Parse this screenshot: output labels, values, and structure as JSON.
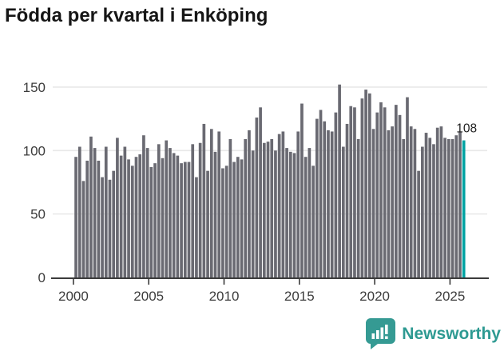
{
  "title": "Födda per kvartal i Enköping",
  "chart_data": {
    "type": "bar",
    "title": "Födda per kvartal i Enköping",
    "period": "quarterly",
    "start_year": 2000,
    "values": [
      95,
      103,
      76,
      92,
      111,
      102,
      92,
      79,
      103,
      77,
      84,
      110,
      96,
      103,
      93,
      88,
      95,
      97,
      112,
      102,
      87,
      90,
      105,
      94,
      108,
      102,
      98,
      96,
      90,
      91,
      91,
      105,
      79,
      106,
      121,
      84,
      117,
      99,
      115,
      86,
      88,
      109,
      91,
      95,
      93,
      109,
      116,
      100,
      126,
      134,
      106,
      107,
      109,
      100,
      113,
      115,
      102,
      99,
      98,
      115,
      137,
      95,
      102,
      88,
      125,
      132,
      123,
      116,
      115,
      130,
      152,
      103,
      121,
      135,
      134,
      109,
      141,
      148,
      145,
      117,
      130,
      138,
      134,
      116,
      119,
      136,
      128,
      109,
      142,
      119,
      117,
      84,
      103,
      114,
      110,
      105,
      118,
      119,
      110,
      109,
      109,
      112,
      115,
      108
    ],
    "highlight_index": 103,
    "highlight_value_label": "108",
    "x_tick_years": [
      2000,
      2005,
      2010,
      2015,
      2020,
      2025
    ],
    "y_ticks": [
      0,
      50,
      100,
      150
    ],
    "ylim": [
      0,
      160
    ],
    "grid": true,
    "legend": "none",
    "xlabel": "",
    "ylabel": "",
    "bar_color": "#6a6a72",
    "highlight_color": "#00a2a2",
    "axis_color": "#3b3b3b",
    "grid_color": "#e8e8e8",
    "tick_label_color": "#3c3c3c",
    "annotation_color": "#1f1f1f"
  },
  "footer": {
    "brand": "Newsworthy",
    "logo_icon": "newsworthy-bubble-chart-icon",
    "brand_color": "#2e9a92",
    "logo_color": "#359a93"
  }
}
